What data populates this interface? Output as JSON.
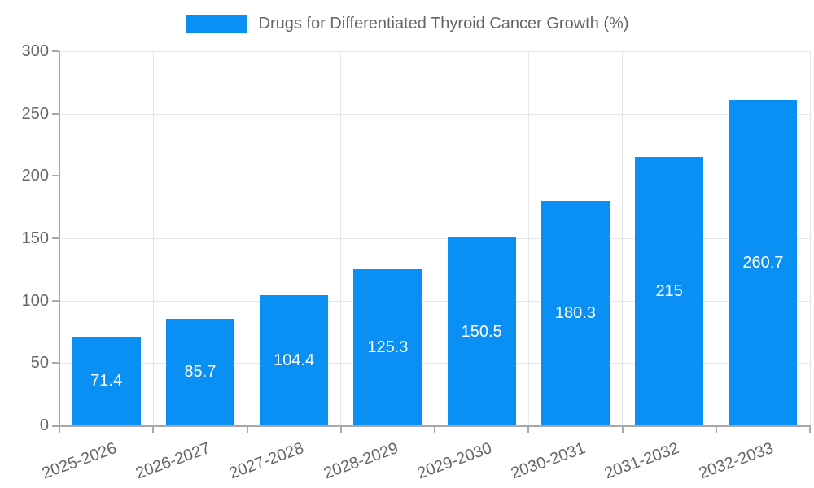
{
  "chart_data": {
    "type": "bar",
    "title": "Drugs for Differentiated Thyroid Cancer Growth (%)",
    "legend": {
      "label": "Drugs for Differentiated Thyroid Cancer Growth (%)",
      "position": "top-center"
    },
    "categories": [
      "2025-2026",
      "2026-2027",
      "2027-2028",
      "2028-2029",
      "2029-2030",
      "2030-2031",
      "2031-2032",
      "2032-2033"
    ],
    "values": [
      71.4,
      85.7,
      104.4,
      125.3,
      150.5,
      180.3,
      215,
      260.7
    ],
    "value_labels": [
      "71.4",
      "85.7",
      "104.4",
      "125.3",
      "150.5",
      "180.3",
      "215",
      "260.7"
    ],
    "xlabel": "",
    "ylabel": "",
    "ylim": [
      0,
      300
    ],
    "yticks": [
      0,
      50,
      100,
      150,
      200,
      250,
      300
    ],
    "grid": "on",
    "value_label_position": "inside-center",
    "x_tick_label_rotation_deg": -20,
    "colors": {
      "bar": "#0a8ff5",
      "value_label": "#ffffff",
      "axis": "#a8a8a8",
      "gridline": "#e6e6e6",
      "tick_label": "#666666",
      "title": "#666666",
      "background": "#ffffff"
    }
  }
}
